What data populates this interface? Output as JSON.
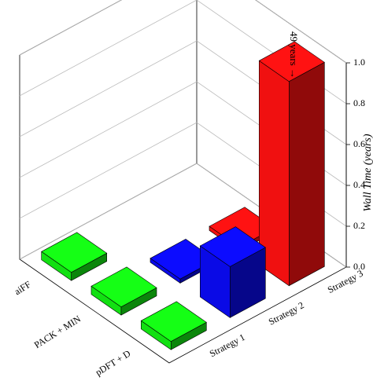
{
  "chart_data": {
    "type": "bar3d",
    "categories": [
      "aiFF",
      "PACK + MIN",
      "pDFT + D"
    ],
    "series": [
      {
        "name": "Strategy 1",
        "color": "#12e012",
        "values": [
          0.04,
          0.04,
          0.04
        ]
      },
      {
        "name": "Strategy 2",
        "color": "#0a0ae6",
        "values": [
          null,
          0.02,
          0.25
        ]
      },
      {
        "name": "Strategy 3",
        "color": "#f01010",
        "values": [
          null,
          0.02,
          49
        ]
      }
    ],
    "ylabel": "Wall Time (years)",
    "ylim": [
      0,
      1
    ],
    "yticks": [
      {
        "value": 0,
        "label": "0.0"
      },
      0.2,
      0.4,
      0.6,
      0.8,
      {
        "value": 1,
        "label": "1.0"
      }
    ],
    "annotation": "49 years →",
    "grid": true
  }
}
